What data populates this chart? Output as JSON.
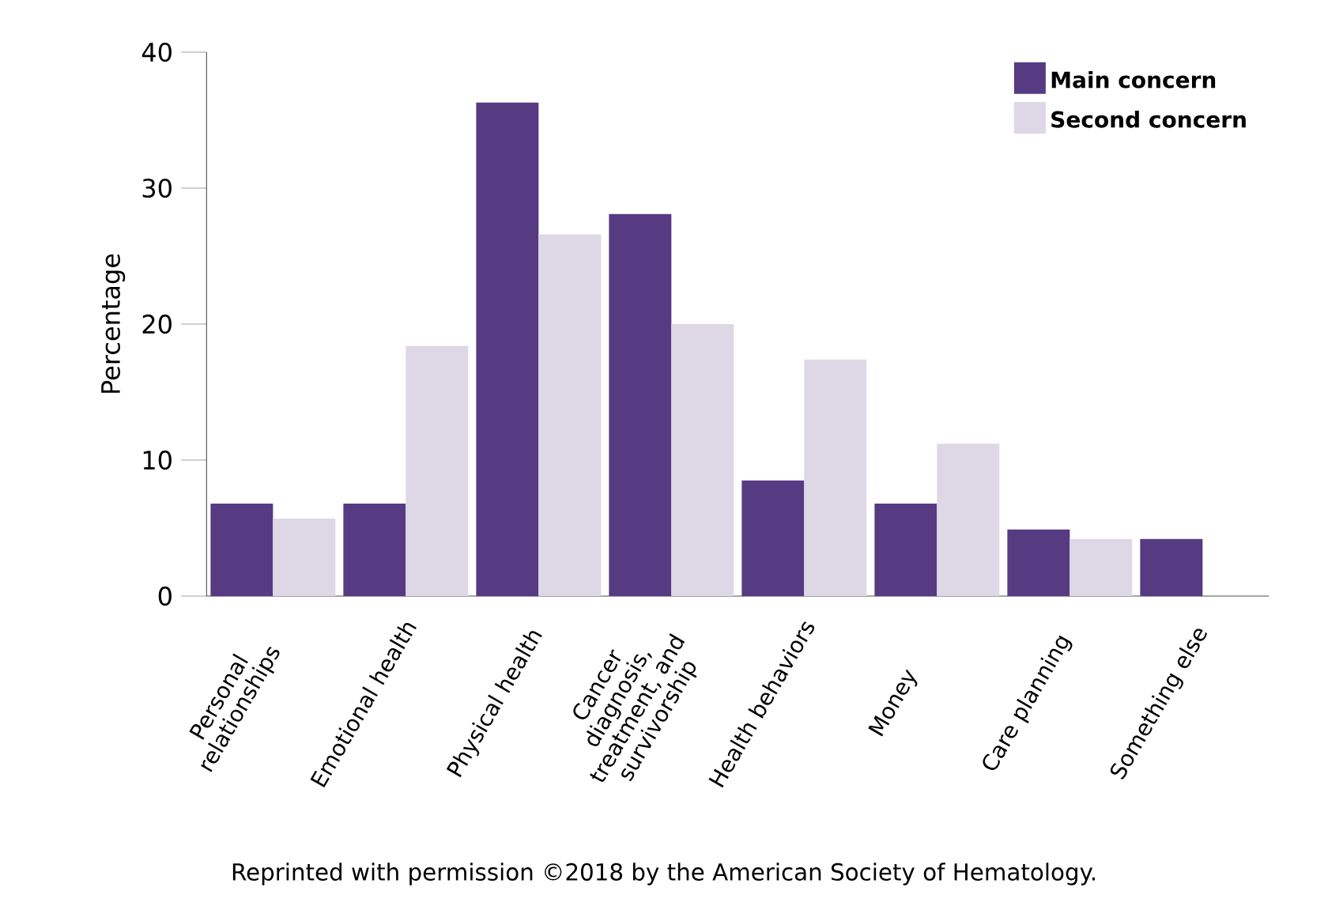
{
  "chart_data": {
    "type": "bar",
    "ylabel": "Percentage",
    "categories": [
      "Personal relationships",
      "Emotional health",
      "Physical health",
      "Cancer diagnosis, treatment, and survivorship",
      "Health behaviors",
      "Money",
      "Care planning",
      "Something else"
    ],
    "series": [
      {
        "name": "Main concern",
        "color": "#563a82",
        "values": [
          6.8,
          6.8,
          36.3,
          28.1,
          8.5,
          6.8,
          4.9,
          4.2
        ]
      },
      {
        "name": "Second concern",
        "color": "#ddd7e6",
        "values": [
          5.7,
          18.4,
          26.6,
          20.0,
          17.4,
          11.2,
          4.2,
          null
        ]
      }
    ],
    "ylim": [
      0,
      40
    ],
    "yticks": [
      0,
      10,
      20,
      30,
      40
    ],
    "legend": "top right",
    "annotations": [
      "Reprinted with permission ©2018 by the American Society of Hematology."
    ]
  }
}
